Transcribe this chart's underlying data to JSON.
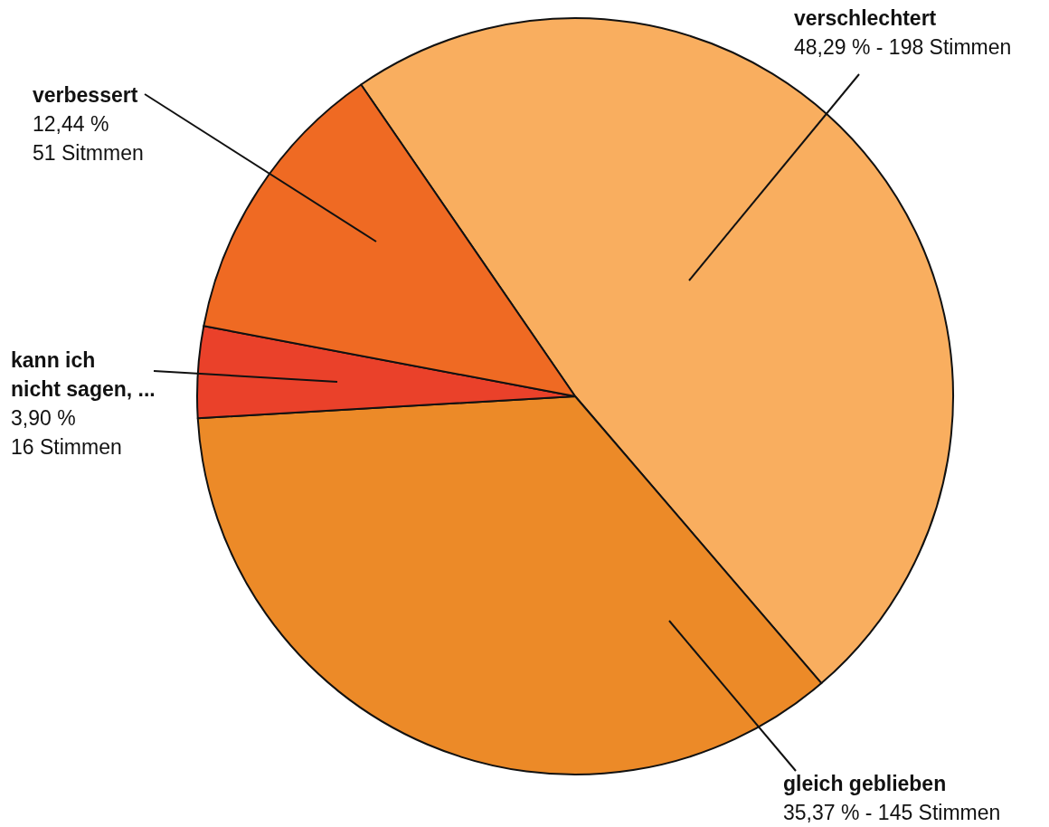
{
  "chart_data": {
    "type": "pie",
    "categories": [
      "verschlechtert",
      "gleich geblieben",
      "kann ich nicht sagen, ...",
      "verbessert"
    ],
    "values": [
      48.29,
      35.37,
      3.9,
      12.44
    ],
    "colors": [
      "#f9ae5f",
      "#ec8a28",
      "#ea412a",
      "#ef6a23"
    ],
    "value_labels": [
      "48,29 % - 198 Stimmen",
      "35,37 % - 145 Stimmen",
      "3,90 %\n16 Stimmen",
      "12,44 %\n51 Sitmmen"
    ]
  }
}
